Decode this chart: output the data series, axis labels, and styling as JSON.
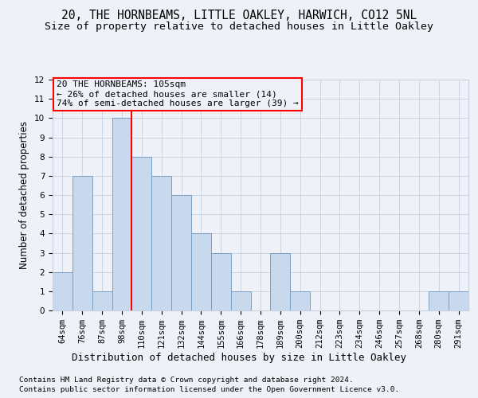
{
  "title1": "20, THE HORNBEAMS, LITTLE OAKLEY, HARWICH, CO12 5NL",
  "title2": "Size of property relative to detached houses in Little Oakley",
  "xlabel": "Distribution of detached houses by size in Little Oakley",
  "ylabel": "Number of detached properties",
  "footnote1": "Contains HM Land Registry data © Crown copyright and database right 2024.",
  "footnote2": "Contains public sector information licensed under the Open Government Licence v3.0.",
  "categories": [
    "64sqm",
    "76sqm",
    "87sqm",
    "98sqm",
    "110sqm",
    "121sqm",
    "132sqm",
    "144sqm",
    "155sqm",
    "166sqm",
    "178sqm",
    "189sqm",
    "200sqm",
    "212sqm",
    "223sqm",
    "234sqm",
    "246sqm",
    "257sqm",
    "268sqm",
    "280sqm",
    "291sqm"
  ],
  "values": [
    2,
    7,
    1,
    10,
    8,
    7,
    6,
    4,
    3,
    1,
    0,
    3,
    1,
    0,
    0,
    0,
    0,
    0,
    0,
    1,
    1
  ],
  "bar_color": "#c9d9ed",
  "bar_edge_color": "#7a9fc2",
  "annotation_line1": "20 THE HORNBEAMS: 105sqm",
  "annotation_line2": "← 26% of detached houses are smaller (14)",
  "annotation_line3": "74% of semi-detached houses are larger (39) →",
  "annotation_box_edge_color": "red",
  "red_line_x": 3.5,
  "ylim": [
    0,
    12
  ],
  "yticks": [
    0,
    1,
    2,
    3,
    4,
    5,
    6,
    7,
    8,
    9,
    10,
    11,
    12
  ],
  "background_color": "#eef2f8",
  "grid_color": "#c8d0de",
  "title_fontsize": 10.5,
  "subtitle_fontsize": 9.5,
  "axis_label_fontsize": 8.5,
  "tick_fontsize": 7.5,
  "footnote_fontsize": 6.8,
  "annotation_fontsize": 8.0
}
